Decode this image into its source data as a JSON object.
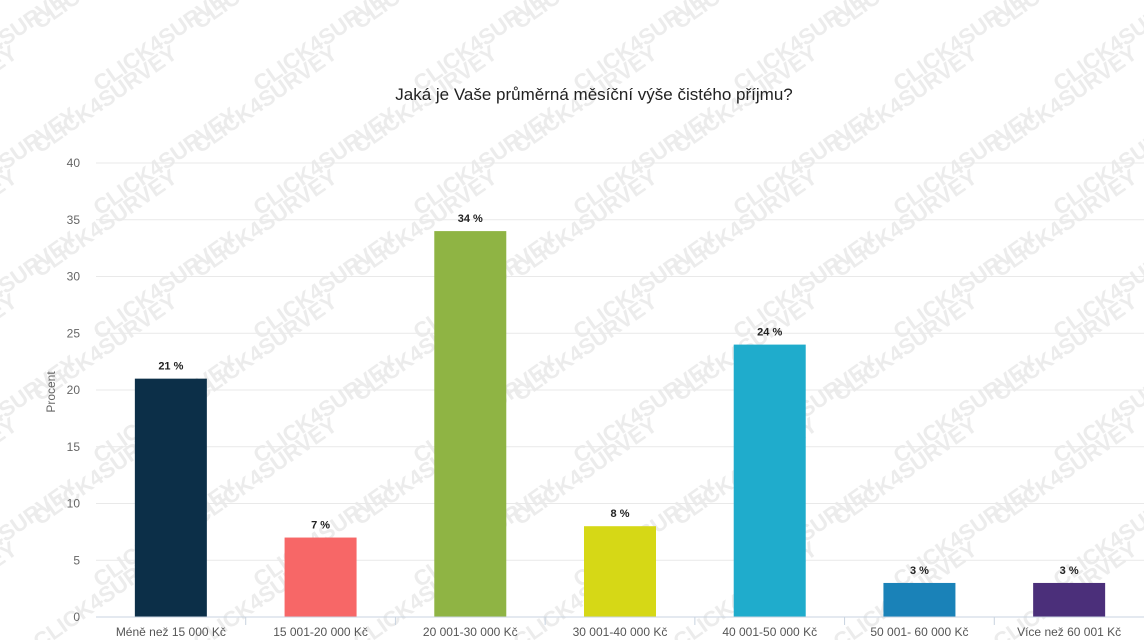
{
  "chart_data": {
    "type": "bar",
    "title": "Jaká je Vaše průměrná měsíční výše čistého příjmu?",
    "ylabel": "Procent",
    "xlabel": "",
    "ylim": [
      0,
      40
    ],
    "yticks": [
      0,
      5,
      10,
      15,
      20,
      25,
      30,
      35,
      40
    ],
    "grid": true,
    "legend": "none",
    "watermark": "CLICK4SURVEY",
    "categories": [
      "Méně než 15 000 Kč",
      "15 001-20 000 Kč",
      "20 001-30 000 Kč",
      "30 001-40 000 Kč",
      "40 001-50 000 Kč",
      "50 001- 60 000 Kč",
      "Více než 60 001 Kč"
    ],
    "values": [
      21,
      7,
      34,
      8,
      24,
      3,
      3
    ],
    "data_labels": [
      "21 %",
      "7 %",
      "34 %",
      "8 %",
      "24 %",
      "3 %",
      "3 %"
    ],
    "colors": [
      "#0c2f48",
      "#f76767",
      "#8fb444",
      "#d6d816",
      "#1faccc",
      "#1a82b8",
      "#4b2f7a"
    ]
  }
}
